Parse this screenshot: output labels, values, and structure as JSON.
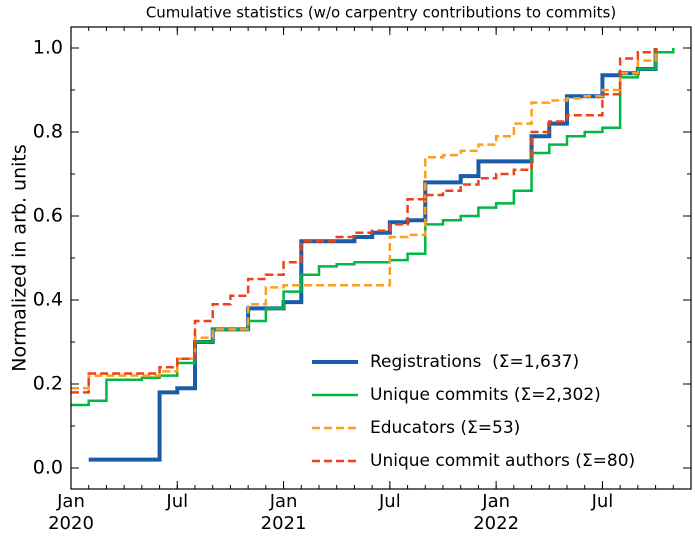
{
  "chart_data": {
    "type": "step",
    "title": "Cumulative statistics (w/o carpentry contributions to commits)",
    "ylabel": "Normalized in arb. units",
    "xlim": [
      "2020-01",
      "2022-12"
    ],
    "xticks": [
      {
        "value": "2020-01",
        "label": "Jan\n2020"
      },
      {
        "value": "2020-07",
        "label": "Jul"
      },
      {
        "value": "2021-01",
        "label": "Jan\n2021"
      },
      {
        "value": "2021-07",
        "label": "Jul"
      },
      {
        "value": "2022-01",
        "label": "Jan\n2022"
      },
      {
        "value": "2022-07",
        "label": "Jul"
      }
    ],
    "ylim": [
      -0.05,
      1.05
    ],
    "yticks": [
      {
        "value": 0,
        "label": "0.0"
      },
      0.2,
      0.4,
      0.6,
      0.8,
      {
        "value": 1,
        "label": "1.0"
      }
    ],
    "legend": "lower right",
    "series": [
      {
        "name": "Registrations  (Σ=1,637)",
        "color": "#1a5ca8",
        "width": 4,
        "dashed": false,
        "x": [
          "2020-02",
          "2020-03",
          "2020-04",
          "2020-05",
          "2020-06",
          "2020-07",
          "2020-08",
          "2020-09",
          "2020-10",
          "2020-11",
          "2020-12",
          "2021-01",
          "2021-02",
          "2021-03",
          "2021-04",
          "2021-05",
          "2021-06",
          "2021-07",
          "2021-08",
          "2021-09",
          "2021-10",
          "2021-11",
          "2021-12",
          "2022-01",
          "2022-02",
          "2022-03",
          "2022-04",
          "2022-05",
          "2022-06",
          "2022-07",
          "2022-08",
          "2022-09",
          "2022-10"
        ],
        "values": [
          0.02,
          0.02,
          0.02,
          0.02,
          0.18,
          0.19,
          0.3,
          0.33,
          0.33,
          0.38,
          0.38,
          0.395,
          0.54,
          0.54,
          0.54,
          0.55,
          0.56,
          0.585,
          0.59,
          0.68,
          0.68,
          0.695,
          0.73,
          0.73,
          0.73,
          0.79,
          0.82,
          0.885,
          0.885,
          0.935,
          0.94,
          0.95,
          1.0
        ]
      },
      {
        "name": "Unique commits (Σ=2,302)",
        "color": "#00b843",
        "width": 2.5,
        "dashed": false,
        "x": [
          "2020-01",
          "2020-02",
          "2020-03",
          "2020-04",
          "2020-05",
          "2020-06",
          "2020-07",
          "2020-08",
          "2020-09",
          "2020-10",
          "2020-11",
          "2020-12",
          "2021-01",
          "2021-02",
          "2021-03",
          "2021-04",
          "2021-05",
          "2021-06",
          "2021-07",
          "2021-08",
          "2021-09",
          "2021-10",
          "2021-11",
          "2021-12",
          "2022-01",
          "2022-02",
          "2022-03",
          "2022-04",
          "2022-05",
          "2022-06",
          "2022-07",
          "2022-08",
          "2022-09",
          "2022-10",
          "2022-11"
        ],
        "values": [
          0.15,
          0.16,
          0.21,
          0.21,
          0.215,
          0.22,
          0.25,
          0.3,
          0.33,
          0.33,
          0.35,
          0.38,
          0.42,
          0.46,
          0.48,
          0.485,
          0.49,
          0.49,
          0.495,
          0.51,
          0.58,
          0.59,
          0.6,
          0.62,
          0.63,
          0.66,
          0.75,
          0.77,
          0.79,
          0.8,
          0.81,
          0.93,
          0.95,
          0.99,
          1.0
        ]
      },
      {
        "name": "Educators (Σ=53)",
        "color": "#ff9e1b",
        "width": 2.5,
        "dashed": true,
        "x": [
          "2020-01",
          "2020-02",
          "2020-03",
          "2020-04",
          "2020-05",
          "2020-06",
          "2020-07",
          "2020-08",
          "2020-09",
          "2020-10",
          "2020-11",
          "2020-12",
          "2021-01",
          "2021-02",
          "2021-03",
          "2021-04",
          "2021-05",
          "2021-06",
          "2021-07",
          "2021-08",
          "2021-09",
          "2021-10",
          "2021-11",
          "2021-12",
          "2022-01",
          "2022-02",
          "2022-03",
          "2022-04",
          "2022-05",
          "2022-06",
          "2022-07",
          "2022-08",
          "2022-09",
          "2022-10"
        ],
        "values": [
          0.19,
          0.22,
          0.22,
          0.22,
          0.22,
          0.23,
          0.26,
          0.31,
          0.33,
          0.33,
          0.39,
          0.43,
          0.435,
          0.435,
          0.435,
          0.435,
          0.435,
          0.435,
          0.55,
          0.555,
          0.74,
          0.745,
          0.755,
          0.77,
          0.79,
          0.82,
          0.87,
          0.875,
          0.88,
          0.885,
          0.9,
          0.94,
          0.97,
          1.0
        ]
      },
      {
        "name": "Unique commit authors (Σ=80)",
        "color": "#f0401a",
        "width": 2.5,
        "dashed": true,
        "x": [
          "2020-01",
          "2020-02",
          "2020-03",
          "2020-04",
          "2020-05",
          "2020-06",
          "2020-07",
          "2020-08",
          "2020-09",
          "2020-10",
          "2020-11",
          "2020-12",
          "2021-01",
          "2021-02",
          "2021-03",
          "2021-04",
          "2021-05",
          "2021-06",
          "2021-07",
          "2021-08",
          "2021-09",
          "2021-10",
          "2021-11",
          "2021-12",
          "2022-01",
          "2022-02",
          "2022-03",
          "2022-04",
          "2022-05",
          "2022-06",
          "2022-07",
          "2022-08",
          "2022-09",
          "2022-10"
        ],
        "values": [
          0.18,
          0.225,
          0.225,
          0.225,
          0.225,
          0.24,
          0.26,
          0.35,
          0.39,
          0.41,
          0.45,
          0.46,
          0.49,
          0.54,
          0.54,
          0.55,
          0.56,
          0.565,
          0.58,
          0.64,
          0.65,
          0.66,
          0.675,
          0.69,
          0.7,
          0.71,
          0.8,
          0.825,
          0.84,
          0.84,
          0.89,
          0.975,
          0.99,
          1.0
        ]
      }
    ]
  }
}
